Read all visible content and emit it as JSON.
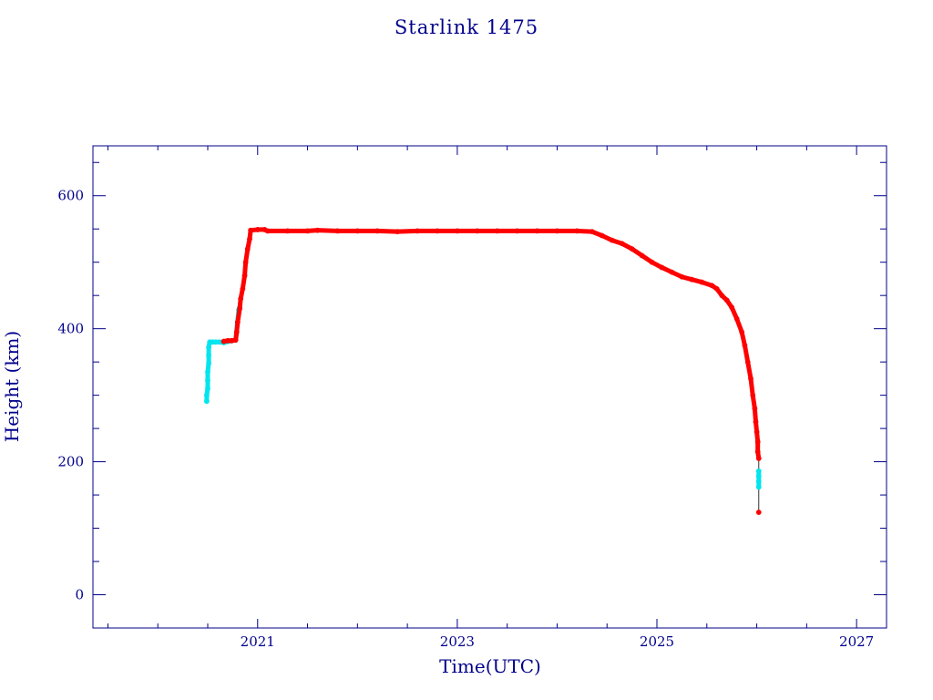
{
  "colors": {
    "axis": "#00008b",
    "text": "#00008b",
    "series_primary": "#ff0000",
    "series_secondary": "#00e5ee",
    "background": "#ffffff"
  },
  "chart_data": {
    "type": "scatter",
    "title": "Starlink 1475",
    "xlabel": "Time(UTC)",
    "ylabel": "Height (km)",
    "xlim": [
      2019.35,
      2027.3
    ],
    "ylim": [
      -50,
      675
    ],
    "x_ticks": [
      2021,
      2023,
      2025,
      2027
    ],
    "y_ticks": [
      0,
      200,
      400,
      600
    ],
    "grid": false,
    "legend": "none",
    "series": [
      {
        "color": "#00e5ee",
        "points": [
          [
            2020.49,
            291
          ],
          [
            2020.49,
            300
          ],
          [
            2020.5,
            310
          ],
          [
            2020.5,
            322
          ],
          [
            2020.5,
            335
          ],
          [
            2020.51,
            348
          ],
          [
            2020.51,
            360
          ],
          [
            2020.51,
            372
          ],
          [
            2020.52,
            380
          ],
          [
            2020.55,
            380
          ],
          [
            2020.58,
            380
          ],
          [
            2020.62,
            380
          ],
          [
            2020.66,
            379
          ],
          [
            2020.78,
            383
          ],
          [
            2020.81,
            428
          ],
          [
            2020.82,
            432
          ],
          [
            2026.02,
            162
          ],
          [
            2026.02,
            170
          ],
          [
            2026.02,
            178
          ],
          [
            2026.02,
            186
          ]
        ]
      },
      {
        "color": "#ff0000",
        "points": [
          [
            2020.66,
            381
          ],
          [
            2020.7,
            382
          ],
          [
            2020.74,
            382
          ],
          [
            2020.78,
            383
          ],
          [
            2020.79,
            395
          ],
          [
            2020.8,
            410
          ],
          [
            2020.82,
            430
          ],
          [
            2020.83,
            445
          ],
          [
            2020.85,
            460
          ],
          [
            2020.87,
            480
          ],
          [
            2020.88,
            500
          ],
          [
            2020.9,
            520
          ],
          [
            2020.92,
            535
          ],
          [
            2020.93,
            548
          ],
          [
            2021.0,
            549
          ],
          [
            2021.07,
            549
          ],
          [
            2021.1,
            547
          ],
          [
            2021.3,
            547
          ],
          [
            2021.5,
            547
          ],
          [
            2021.6,
            548
          ],
          [
            2021.8,
            547
          ],
          [
            2022.0,
            547
          ],
          [
            2022.2,
            547
          ],
          [
            2022.4,
            546
          ],
          [
            2022.6,
            547
          ],
          [
            2022.8,
            547
          ],
          [
            2023.0,
            547
          ],
          [
            2023.2,
            547
          ],
          [
            2023.4,
            547
          ],
          [
            2023.6,
            547
          ],
          [
            2023.8,
            547
          ],
          [
            2024.0,
            547
          ],
          [
            2024.2,
            547
          ],
          [
            2024.35,
            546
          ],
          [
            2024.45,
            540
          ],
          [
            2024.55,
            533
          ],
          [
            2024.65,
            528
          ],
          [
            2024.75,
            520
          ],
          [
            2024.85,
            510
          ],
          [
            2024.95,
            500
          ],
          [
            2025.05,
            492
          ],
          [
            2025.15,
            485
          ],
          [
            2025.25,
            478
          ],
          [
            2025.35,
            474
          ],
          [
            2025.45,
            470
          ],
          [
            2025.55,
            465
          ],
          [
            2025.6,
            460
          ],
          [
            2025.65,
            450
          ],
          [
            2025.7,
            443
          ],
          [
            2025.75,
            432
          ],
          [
            2025.8,
            415
          ],
          [
            2025.85,
            395
          ],
          [
            2025.88,
            375
          ],
          [
            2025.91,
            350
          ],
          [
            2025.94,
            325
          ],
          [
            2025.96,
            300
          ],
          [
            2025.98,
            280
          ],
          [
            2025.99,
            260
          ],
          [
            2026.0,
            245
          ],
          [
            2026.01,
            230
          ],
          [
            2026.01,
            215
          ],
          [
            2026.02,
            205
          ],
          [
            2026.02,
            124
          ]
        ]
      }
    ]
  }
}
